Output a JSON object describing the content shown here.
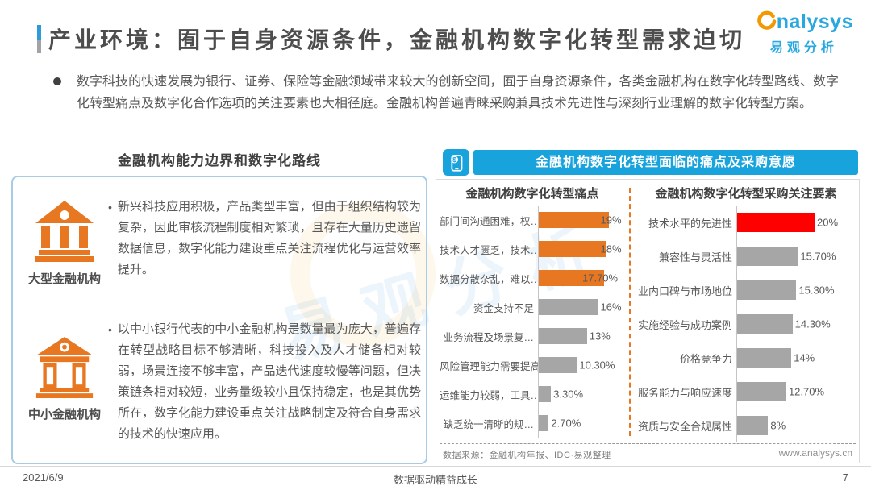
{
  "page": {
    "title": "产业环境：囿于自身资源条件，金融机构数字化转型需求迫切",
    "watermark": "易观分析",
    "footer": {
      "date": "2021/6/9",
      "slogan": "数据驱动精益成长",
      "page_number": "7"
    }
  },
  "logo": {
    "en_text": "nalysys",
    "cn_text": "易观分析"
  },
  "intro": {
    "bullet_text": "数字科技的快速发展为银行、证券、保险等金融领域带来较大的创新空间，囿于自身资源条件，各类金融机构在数字化转型路线、数字化转型痛点及数字化合作选项的关注要素也大相径庭。金融机构普遍青睐采购兼具技术先进性与深刻行业理解的数字化转型方案。"
  },
  "left_panel": {
    "title": "金融机构能力边界和数字化路线",
    "items": [
      {
        "label": "大型金融机构",
        "text": "新兴科技应用积极，产品类型丰富，但由于组织结构较为复杂，因此审核流程制度相对繁琐，且存在大量历史遗留数据信息，数字化能力建设重点关注流程优化与运营效率提升。"
      },
      {
        "label": "中小金融机构",
        "text": "以中小银行代表的中小金融机构是数量最为庞大，普遍存在转型战略目标不够清晰，科技投入及人才储备相对较弱，场景连接不够丰富，产品迭代速度较慢等问题，但决策链条相对较短，业务量级较小且保持稳定，也是其优势所在，数字化能力建设重点关注战略制定及符合自身需求的技术的快速应用。"
      }
    ]
  },
  "right_panel": {
    "header": "金融机构数字化转型面临的痛点及采购意愿",
    "source": "数据来源：金融机构年报、IDC·易观整理",
    "website": "www.analysys.cn"
  },
  "chart_data": [
    {
      "type": "bar",
      "orientation": "horizontal",
      "title": "金融机构数字化转型痛点",
      "categories": [
        "部门间沟通困难，权…",
        "技术人才匮乏，技术…",
        "数据分散杂乱，难以…",
        "资金支持不足",
        "业务流程及场景复…",
        "风险管理能力需要提高",
        "运维能力较弱，工具…",
        "缺乏统一清晰的规…"
      ],
      "values": [
        19,
        18,
        17.7,
        16,
        13,
        10.3,
        3.3,
        2.7
      ],
      "labels": [
        "19%",
        "18%",
        "17.70%",
        "16%",
        "13%",
        "10.30%",
        "3.30%",
        "2.70%"
      ],
      "colors": [
        "#e87722",
        "#e87722",
        "#e87722",
        "#a6a6a6",
        "#a6a6a6",
        "#a6a6a6",
        "#a6a6a6",
        "#a6a6a6"
      ],
      "xlim": [
        0,
        20
      ],
      "grid": false,
      "legend": "none"
    },
    {
      "type": "bar",
      "orientation": "horizontal",
      "title": "金融机构数字化转型采购关注要素",
      "categories": [
        "技术水平的先进性",
        "兼容性与灵活性",
        "业内口碑与市场地位",
        "实施经验与成功案例",
        "价格竞争力",
        "服务能力与响应速度",
        "资质与安全合规属性"
      ],
      "values": [
        20,
        15.7,
        15.3,
        14.3,
        14,
        12.7,
        8
      ],
      "labels": [
        "20%",
        "15.70%",
        "15.30%",
        "14.30%",
        "14%",
        "12.70%",
        "8%"
      ],
      "colors": [
        "#ff0000",
        "#a6a6a6",
        "#a6a6a6",
        "#a6a6a6",
        "#a6a6a6",
        "#a6a6a6",
        "#a6a6a6"
      ],
      "xlim": [
        0,
        21
      ],
      "grid": false,
      "legend": "none"
    }
  ],
  "colors": {
    "accent_blue": "#18a3dc",
    "logo_blue": "#29a8df",
    "logo_orange": "#f39800",
    "icon_orange": "#e87722",
    "highlight_red": "#ff0000",
    "bar_gray": "#a6a6a6",
    "text_gray": "#595959"
  }
}
